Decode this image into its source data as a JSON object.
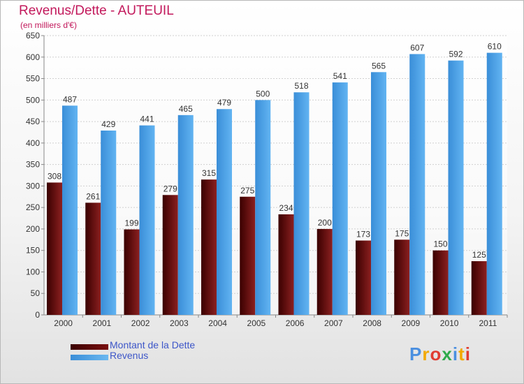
{
  "chart_data": {
    "type": "bar",
    "title": "Revenus/Dette - AUTEUIL",
    "subtitle": "(en milliers d'€)",
    "categories": [
      "2000",
      "2001",
      "2002",
      "2003",
      "2004",
      "2005",
      "2006",
      "2007",
      "2008",
      "2009",
      "2010",
      "2011"
    ],
    "series": [
      {
        "name": "Montant de la Dette",
        "color": "#8b1a1a",
        "values": [
          308,
          261,
          199,
          279,
          315,
          275,
          234,
          200,
          173,
          175,
          150,
          125
        ]
      },
      {
        "name": "Revenus",
        "color": "#4aa3e8",
        "values": [
          487,
          429,
          441,
          465,
          479,
          500,
          518,
          541,
          565,
          607,
          592,
          610
        ]
      }
    ],
    "yticks": [
      0,
      50,
      100,
      150,
      200,
      250,
      300,
      350,
      400,
      450,
      500,
      550,
      600,
      650
    ],
    "ylim": [
      0,
      650
    ],
    "grid": true,
    "legend_position": "bottom-left"
  },
  "brand": {
    "text": "Proxiti",
    "letter_colors": [
      "#4a8fe0",
      "#f2a900",
      "#e03c31",
      "#2eaa4a",
      "#4a8fe0",
      "#f2a900",
      "#e03c31"
    ]
  }
}
